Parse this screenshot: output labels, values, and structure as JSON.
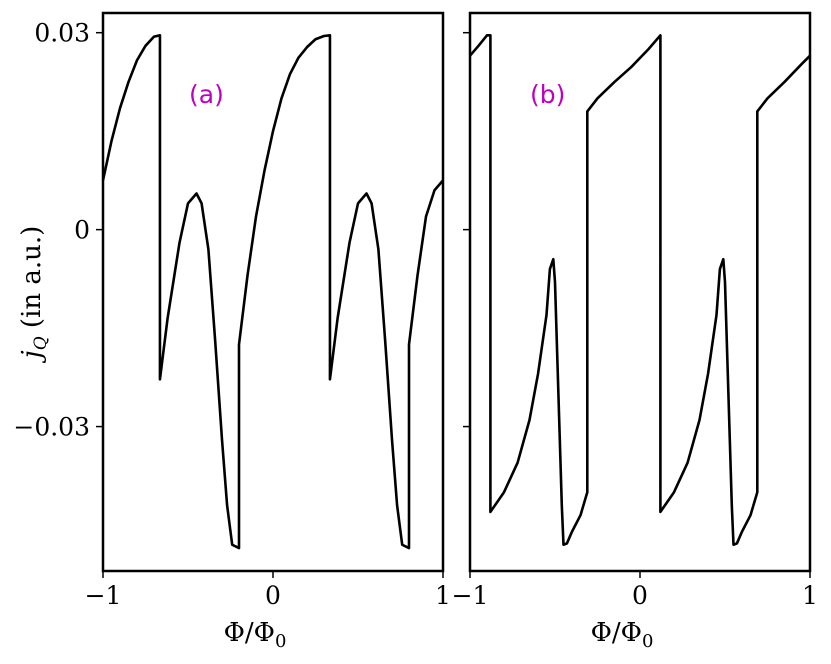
{
  "chart_data": [
    {
      "type": "line",
      "panel_label": "(a)",
      "xlabel": "Φ/Φ₀",
      "ylabel": "j_Q (in a.u.)",
      "xlim": [
        -1,
        1
      ],
      "ylim": [
        -0.052,
        0.033
      ],
      "x_ticks": [
        {
          "v": -1,
          "label": "−1"
        },
        {
          "v": 0,
          "label": "0"
        },
        {
          "v": 1,
          "label": "1"
        }
      ],
      "y_ticks": [
        {
          "v": 0.03,
          "label": "0.03"
        },
        {
          "v": 0,
          "label": "0"
        },
        {
          "v": -0.03,
          "label": "−0.03"
        }
      ],
      "grid": false,
      "series": [
        {
          "values": [
            [
              -1.0,
              0.0075
            ],
            [
              -0.95,
              0.0135
            ],
            [
              -0.9,
              0.0185
            ],
            [
              -0.85,
              0.0225
            ],
            [
              -0.8,
              0.0258
            ],
            [
              -0.75,
              0.028
            ],
            [
              -0.7,
              0.0294
            ],
            [
              -0.665,
              0.0296
            ],
            [
              -0.665,
              -0.0228
            ],
            [
              -0.62,
              -0.0135
            ],
            [
              -0.55,
              -0.002
            ],
            [
              -0.5,
              0.004
            ],
            [
              -0.45,
              0.0055
            ],
            [
              -0.42,
              0.004
            ],
            [
              -0.38,
              -0.003
            ],
            [
              -0.34,
              -0.017
            ],
            [
              -0.3,
              -0.032
            ],
            [
              -0.27,
              -0.042
            ],
            [
              -0.24,
              -0.048
            ],
            [
              -0.2,
              -0.0485
            ],
            [
              -0.2,
              -0.0175
            ],
            [
              -0.15,
              -0.007
            ],
            [
              -0.1,
              0.002
            ],
            [
              -0.05,
              0.009
            ],
            [
              0.0,
              0.015
            ],
            [
              0.05,
              0.02
            ],
            [
              0.1,
              0.0237
            ],
            [
              0.15,
              0.0262
            ],
            [
              0.2,
              0.0278
            ],
            [
              0.25,
              0.029
            ],
            [
              0.3,
              0.0295
            ],
            [
              0.335,
              0.0296
            ],
            [
              0.335,
              -0.0228
            ],
            [
              0.38,
              -0.0135
            ],
            [
              0.45,
              -0.002
            ],
            [
              0.5,
              0.004
            ],
            [
              0.55,
              0.0055
            ],
            [
              0.58,
              0.004
            ],
            [
              0.62,
              -0.003
            ],
            [
              0.66,
              -0.017
            ],
            [
              0.7,
              -0.032
            ],
            [
              0.73,
              -0.042
            ],
            [
              0.76,
              -0.048
            ],
            [
              0.8,
              -0.0485
            ],
            [
              0.8,
              -0.0175
            ],
            [
              0.85,
              -0.007
            ],
            [
              0.9,
              0.002
            ],
            [
              0.95,
              0.006
            ],
            [
              1.0,
              0.0075
            ]
          ]
        }
      ]
    },
    {
      "type": "line",
      "panel_label": "(b)",
      "xlabel": "Φ/Φ₀",
      "xlim": [
        -1,
        1
      ],
      "ylim": [
        -0.052,
        0.033
      ],
      "x_ticks": [
        {
          "v": -1,
          "label": "−1"
        },
        {
          "v": 0,
          "label": "0"
        },
        {
          "v": 1,
          "label": "1"
        }
      ],
      "y_ticks": [
        {
          "v": 0.03,
          "label": ""
        },
        {
          "v": 0,
          "label": ""
        },
        {
          "v": -0.03,
          "label": ""
        }
      ],
      "grid": false,
      "series": [
        {
          "values": [
            [
              -1.0,
              0.0265
            ],
            [
              -0.95,
              0.028
            ],
            [
              -0.9,
              0.0296
            ],
            [
              -0.88,
              0.0296
            ],
            [
              -0.88,
              -0.043
            ],
            [
              -0.8,
              -0.04
            ],
            [
              -0.72,
              -0.0355
            ],
            [
              -0.65,
              -0.029
            ],
            [
              -0.6,
              -0.022
            ],
            [
              -0.55,
              -0.013
            ],
            [
              -0.53,
              -0.006
            ],
            [
              -0.51,
              -0.0045
            ],
            [
              -0.5,
              -0.008
            ],
            [
              -0.48,
              -0.025
            ],
            [
              -0.46,
              -0.042
            ],
            [
              -0.45,
              -0.048
            ],
            [
              -0.43,
              -0.0478
            ],
            [
              -0.4,
              -0.046
            ],
            [
              -0.35,
              -0.0435
            ],
            [
              -0.31,
              -0.04
            ],
            [
              -0.31,
              0.018
            ],
            [
              -0.25,
              0.02
            ],
            [
              -0.15,
              0.0225
            ],
            [
              -0.05,
              0.0248
            ],
            [
              0.05,
              0.0275
            ],
            [
              0.12,
              0.0296
            ],
            [
              0.12,
              -0.043
            ],
            [
              0.2,
              -0.04
            ],
            [
              0.28,
              -0.0355
            ],
            [
              0.35,
              -0.029
            ],
            [
              0.4,
              -0.022
            ],
            [
              0.45,
              -0.013
            ],
            [
              0.47,
              -0.006
            ],
            [
              0.49,
              -0.0045
            ],
            [
              0.5,
              -0.008
            ],
            [
              0.52,
              -0.025
            ],
            [
              0.54,
              -0.042
            ],
            [
              0.55,
              -0.048
            ],
            [
              0.57,
              -0.0478
            ],
            [
              0.6,
              -0.046
            ],
            [
              0.65,
              -0.0435
            ],
            [
              0.69,
              -0.04
            ],
            [
              0.69,
              0.018
            ],
            [
              0.75,
              0.02
            ],
            [
              0.85,
              0.0225
            ],
            [
              0.95,
              0.0252
            ],
            [
              1.0,
              0.0265
            ]
          ]
        }
      ]
    }
  ],
  "colors": {
    "line": "#000000",
    "axes": "#000000",
    "panel_label": "#c000c0",
    "background": "#ffffff"
  }
}
